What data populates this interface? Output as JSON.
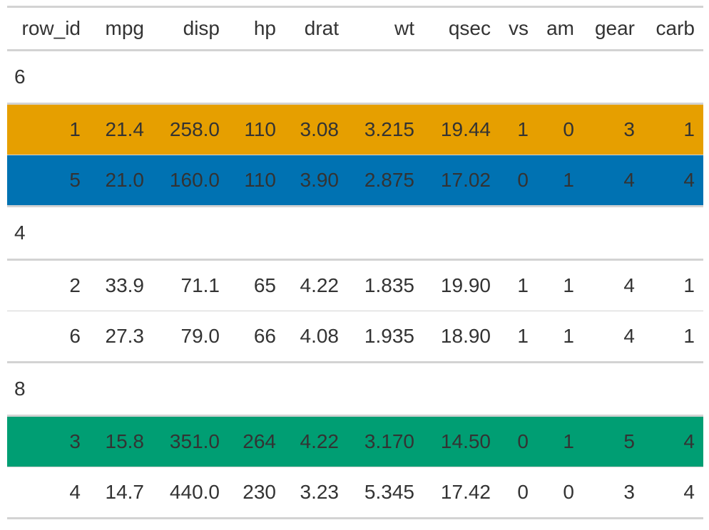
{
  "columns": [
    "row_id",
    "mpg",
    "disp",
    "hp",
    "drat",
    "wt",
    "qsec",
    "vs",
    "am",
    "gear",
    "carb"
  ],
  "groups": [
    {
      "label": "6",
      "rows": [
        {
          "cells": [
            "1",
            "21.4",
            "258.0",
            "110",
            "3.08",
            "3.215",
            "19.44",
            "1",
            "0",
            "3",
            "1"
          ],
          "fill": "#E69F00"
        },
        {
          "cells": [
            "5",
            "21.0",
            "160.0",
            "110",
            "3.90",
            "2.875",
            "17.02",
            "0",
            "1",
            "4",
            "4"
          ],
          "fill": "#0072B2"
        }
      ]
    },
    {
      "label": "4",
      "rows": [
        {
          "cells": [
            "2",
            "33.9",
            "71.1",
            "65",
            "4.22",
            "1.835",
            "19.90",
            "1",
            "1",
            "4",
            "1"
          ],
          "fill": null
        },
        {
          "cells": [
            "6",
            "27.3",
            "79.0",
            "66",
            "4.08",
            "1.935",
            "18.90",
            "1",
            "1",
            "4",
            "1"
          ],
          "fill": null
        }
      ]
    },
    {
      "label": "8",
      "rows": [
        {
          "cells": [
            "3",
            "15.8",
            "351.0",
            "264",
            "4.22",
            "3.170",
            "14.50",
            "0",
            "1",
            "5",
            "4"
          ],
          "fill": "#009E73"
        },
        {
          "cells": [
            "4",
            "14.7",
            "440.0",
            "230",
            "3.23",
            "5.345",
            "17.42",
            "0",
            "0",
            "3",
            "4"
          ],
          "fill": null
        }
      ]
    }
  ]
}
